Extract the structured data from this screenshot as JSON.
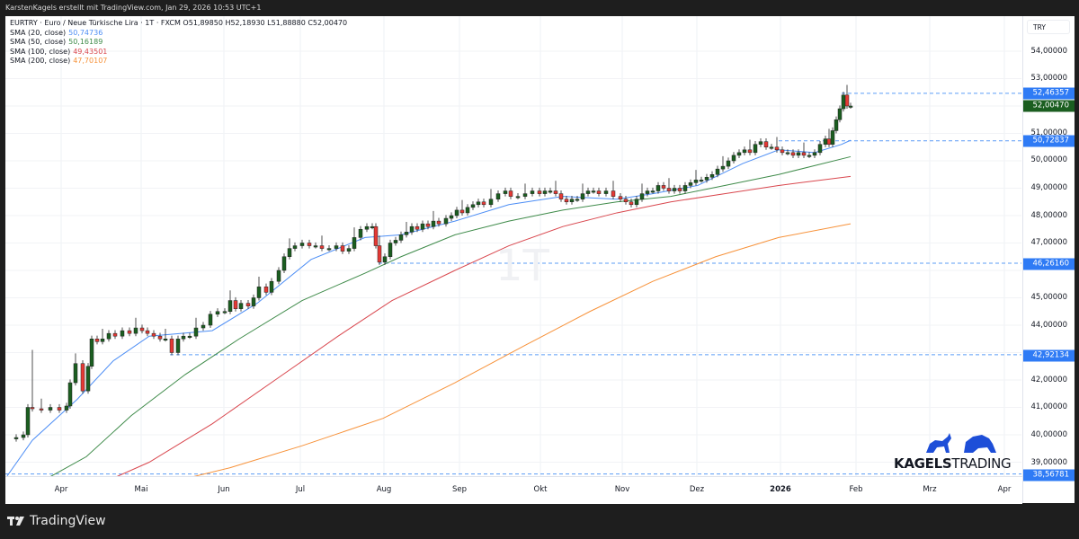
{
  "topbar": {
    "text": "KarstenKagels erstellt mit TradingView.com, Jan 29, 2026 10:53 UTC+1"
  },
  "legend": {
    "symbol_line": "EURTRY · Euro  / Neue Türkische Lira · 1T · FXCM  O51,89850  H52,18930  L51,88880  C52,00470",
    "indicators": [
      {
        "label": "SMA (20, close)",
        "value": "50,74736",
        "color": "#4d8ef5"
      },
      {
        "label": "SMA (50, close)",
        "value": "50,16189",
        "color": "#3f8b4a"
      },
      {
        "label": "SMA (100, close)",
        "value": "49,43501",
        "color": "#d9474e"
      },
      {
        "label": "SMA (200, close)",
        "value": "47,70107",
        "color": "#f7923a"
      }
    ]
  },
  "watermark": "1T",
  "price_axis": {
    "currency": "TRY",
    "ticks": [
      "54,00000",
      "53,00000",
      "51,00000",
      "50,00000",
      "49,00000",
      "48,00000",
      "47,00000",
      "45,00000",
      "44,00000",
      "42,00000",
      "41,00000",
      "40,00000",
      "39,00000"
    ],
    "labels": [
      {
        "value": "52,46357",
        "color": "#2f7bf5"
      },
      {
        "value": "52,00470",
        "color": "#1b5e20"
      },
      {
        "value": "50,72837",
        "color": "#2f7bf5"
      },
      {
        "value": "46,26160",
        "color": "#2f7bf5"
      },
      {
        "value": "42,92134",
        "color": "#2f7bf5"
      },
      {
        "value": "38,56781",
        "color": "#2f7bf5"
      }
    ]
  },
  "time_axis": {
    "labels": [
      "Apr",
      "Mai",
      "Jun",
      "Jul",
      "Aug",
      "Sep",
      "Okt",
      "Nov",
      "Dez",
      "2026",
      "Feb",
      "Mrz",
      "Apr"
    ]
  },
  "branding": {
    "logo_bold": "KAGELS",
    "logo_rest": "TRADING",
    "footer": "TradingView"
  },
  "chart_data": {
    "type": "candlestick",
    "title": "EURTRY · Euro / Neue Türkische Lira · 1T · FXCM",
    "ohlc_last": {
      "open": 51.8985,
      "high": 52.1893,
      "low": 51.8888,
      "close": 52.0047
    },
    "xlabel": "",
    "ylabel": "TRY",
    "ylim": [
      38.2,
      54.4
    ],
    "x_ticks": [
      "Apr",
      "Mai",
      "Jun",
      "Jul",
      "Aug",
      "Sep",
      "Okt",
      "Nov",
      "Dez",
      "2026",
      "Feb",
      "Mrz",
      "Apr"
    ],
    "y_ticks": [
      39,
      40,
      41,
      42,
      44,
      45,
      47,
      48,
      49,
      50,
      51,
      53,
      54
    ],
    "approx_close_by_month": {
      "categories": [
        "Mar-25",
        "Apr-25",
        "Mai-25",
        "Jun-25",
        "Jul-25",
        "Aug-25",
        "Sep-25",
        "Okt-25",
        "Nov-25",
        "Dez-25",
        "Jan-26",
        "late-Jan-26"
      ],
      "values": [
        39.9,
        43.0,
        43.6,
        45.2,
        47.0,
        47.1,
        48.5,
        48.8,
        48.7,
        50.0,
        50.4,
        52.0
      ]
    },
    "series": [
      {
        "name": "SMA (20, close)",
        "last": 50.74736,
        "color": "#4d8ef5"
      },
      {
        "name": "SMA (50, close)",
        "last": 50.16189,
        "color": "#3f8b4a"
      },
      {
        "name": "SMA (100, close)",
        "last": 49.43501,
        "color": "#d9474e"
      },
      {
        "name": "SMA (200, close)",
        "last": 47.70107,
        "color": "#f7923a"
      }
    ],
    "horizontal_lines": [
      52.46357,
      50.72837,
      46.2616,
      42.92134,
      38.56781
    ],
    "grid": true,
    "legend_position": "top-left"
  }
}
